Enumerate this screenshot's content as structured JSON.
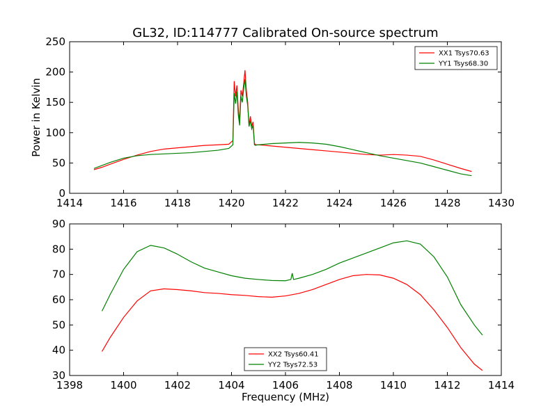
{
  "figure": {
    "title": "GL32, ID:114777 Calibrated On-source spectrum"
  },
  "chart_data": [
    {
      "type": "line",
      "title": "GL32, ID:114777 Calibrated On-source spectrum",
      "xlabel": "",
      "ylabel": "Power in Kelvin",
      "xlim": [
        1414,
        1430
      ],
      "ylim": [
        0,
        250
      ],
      "xticks": [
        1414,
        1416,
        1418,
        1420,
        1422,
        1424,
        1426,
        1428,
        1430
      ],
      "yticks": [
        0,
        50,
        100,
        150,
        200,
        250
      ],
      "grid": false,
      "legend_position": "top-right",
      "series": [
        {
          "name": "XX1 Tsys70.63",
          "color": "#ff0000",
          "x": [
            1414.9,
            1415.2,
            1415.5,
            1416.0,
            1416.5,
            1417.0,
            1417.5,
            1418.0,
            1418.5,
            1419.0,
            1419.5,
            1419.9,
            1420.05,
            1420.1,
            1420.15,
            1420.2,
            1420.25,
            1420.3,
            1420.35,
            1420.4,
            1420.45,
            1420.5,
            1420.55,
            1420.6,
            1420.65,
            1420.7,
            1420.75,
            1420.8,
            1420.85,
            1420.9,
            1420.95,
            1421.0,
            1421.5,
            1422.0,
            1422.5,
            1423.0,
            1423.5,
            1424.0,
            1424.5,
            1425.0,
            1425.5,
            1426.0,
            1426.5,
            1427.0,
            1427.5,
            1428.0,
            1428.5,
            1428.9
          ],
          "y": [
            39,
            43,
            48,
            56,
            63,
            69,
            73,
            75,
            77,
            79,
            80,
            81,
            87,
            185,
            160,
            178,
            140,
            118,
            170,
            160,
            180,
            203,
            170,
            150,
            112,
            127,
            110,
            118,
            82,
            80,
            80,
            80,
            78,
            76,
            74,
            72,
            70,
            68,
            66,
            64,
            63,
            64,
            63,
            61,
            55,
            48,
            41,
            36
          ]
        },
        {
          "name": "YY1 Tsys68.30",
          "color": "#008000",
          "x": [
            1414.9,
            1415.2,
            1415.5,
            1416.0,
            1416.5,
            1417.0,
            1417.5,
            1418.0,
            1418.5,
            1419.0,
            1419.5,
            1419.9,
            1420.05,
            1420.1,
            1420.15,
            1420.2,
            1420.25,
            1420.3,
            1420.35,
            1420.4,
            1420.45,
            1420.5,
            1420.55,
            1420.6,
            1420.65,
            1420.7,
            1420.75,
            1420.8,
            1420.85,
            1420.9,
            1420.95,
            1421.0,
            1421.5,
            1422.0,
            1422.5,
            1423.0,
            1423.5,
            1424.0,
            1424.5,
            1425.0,
            1425.5,
            1426.0,
            1426.5,
            1427.0,
            1427.5,
            1428.0,
            1428.5,
            1428.9
          ],
          "y": [
            41,
            46,
            51,
            58,
            62,
            64,
            65,
            66,
            67,
            69,
            71,
            74,
            80,
            165,
            148,
            168,
            130,
            112,
            160,
            150,
            172,
            188,
            160,
            145,
            110,
            120,
            106,
            112,
            80,
            79,
            80,
            80,
            82,
            83,
            84,
            83,
            81,
            77,
            72,
            67,
            62,
            58,
            54,
            50,
            44,
            38,
            32,
            29
          ]
        }
      ]
    },
    {
      "type": "line",
      "title": "",
      "xlabel": "Frequency (MHz)",
      "ylabel": "",
      "xlim": [
        1398,
        1414
      ],
      "ylim": [
        30,
        90
      ],
      "xticks": [
        1398,
        1400,
        1402,
        1404,
        1406,
        1408,
        1410,
        1412,
        1414
      ],
      "yticks": [
        30,
        40,
        50,
        60,
        70,
        80,
        90
      ],
      "grid": false,
      "legend_position": "bottom-center",
      "series": [
        {
          "name": "XX2 Tsys60.41",
          "color": "#ff0000",
          "x": [
            1399.2,
            1399.5,
            1400.0,
            1400.5,
            1401.0,
            1401.5,
            1402.0,
            1402.5,
            1403.0,
            1403.5,
            1404.0,
            1404.5,
            1405.0,
            1405.5,
            1406.0,
            1406.5,
            1407.0,
            1407.5,
            1408.0,
            1408.5,
            1409.0,
            1409.5,
            1410.0,
            1410.5,
            1411.0,
            1411.5,
            1412.0,
            1412.5,
            1413.0,
            1413.3
          ],
          "y": [
            39.5,
            45,
            53,
            59.5,
            63.5,
            64.3,
            64,
            63.5,
            62.8,
            62.5,
            62,
            61.7,
            61.2,
            61,
            61.5,
            62.5,
            64,
            66,
            68,
            69.5,
            70,
            69.8,
            68.5,
            66,
            62,
            56,
            49,
            41,
            34.5,
            32
          ]
        },
        {
          "name": "YY2 Tsys72.53",
          "color": "#008000",
          "x": [
            1399.2,
            1399.5,
            1400.0,
            1400.5,
            1401.0,
            1401.5,
            1402.0,
            1402.5,
            1403.0,
            1403.5,
            1404.0,
            1404.5,
            1405.0,
            1405.5,
            1406.0,
            1406.2,
            1406.25,
            1406.3,
            1406.5,
            1407.0,
            1407.5,
            1408.0,
            1408.5,
            1409.0,
            1409.5,
            1410.0,
            1410.5,
            1411.0,
            1411.5,
            1412.0,
            1412.5,
            1413.0,
            1413.3
          ],
          "y": [
            55.5,
            62,
            72,
            79,
            81.5,
            80.5,
            78,
            75,
            72.5,
            71,
            69.5,
            68.5,
            68,
            67.6,
            67.5,
            68,
            70.5,
            68,
            68.5,
            70,
            72,
            74.5,
            76.5,
            78.5,
            80.5,
            82.5,
            83.3,
            82,
            77,
            69,
            58,
            50,
            46
          ]
        }
      ]
    }
  ]
}
